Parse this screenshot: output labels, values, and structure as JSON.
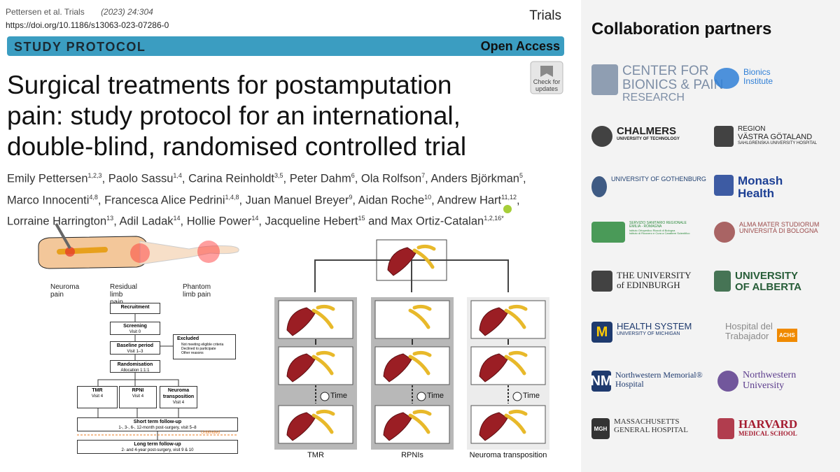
{
  "header": {
    "authors_short": "Pettersen et al. Trials",
    "citation": "(2023) 24:304",
    "doi": "https://doi.org/10.1186/s13063-023-07286-0",
    "journal": "Trials",
    "section": "STUDY PROTOCOL",
    "access": "Open Access",
    "check_updates": [
      "Check for",
      "updates"
    ]
  },
  "title_lines": [
    "Surgical treatments for postamputation",
    "pain: study protocol for an international,",
    "double-blind, randomised controlled trial"
  ],
  "author_lines": [
    [
      {
        "name": "Emily Pettersen",
        "aff": "1,2,3",
        "after": ", "
      },
      {
        "name": "Paolo Sassu",
        "aff": "1,4",
        "after": ", "
      },
      {
        "name": "Carina Reinholdt",
        "aff": "3,5",
        "after": ", "
      },
      {
        "name": "Peter Dahm",
        "aff": "6",
        "after": ", "
      },
      {
        "name": "Ola Rolfson",
        "aff": "7",
        "after": ", "
      },
      {
        "name": "Anders Björkman",
        "aff": "5",
        "after": ","
      }
    ],
    [
      {
        "name": "Marco Innocenti",
        "aff": "4,8",
        "after": ", "
      },
      {
        "name": "Francesca Alice Pedrini",
        "aff": "1,4,8",
        "after": ", "
      },
      {
        "name": "Juan Manuel Breyer",
        "aff": "9",
        "after": ", "
      },
      {
        "name": "Aidan Roche",
        "aff": "10",
        "after": ", "
      },
      {
        "name": "Andrew Hart",
        "aff": "11,12",
        "after": ","
      }
    ],
    [
      {
        "name": "Lorraine Harrington",
        "aff": "13",
        "after": ", "
      },
      {
        "name": "Adil Ladak",
        "aff": "14",
        "after": ", "
      },
      {
        "name": "Hollie Power",
        "aff": "14",
        "after": ", "
      },
      {
        "name": "Jacqueline Hebert",
        "aff": "15",
        "after": " and "
      },
      {
        "name": "Max Ortiz-Catalan",
        "aff": "1,2,16*"
      }
    ]
  ],
  "pain_figure": {
    "labels": [
      "Neuroma pain",
      "Residual limb pain",
      "Phantom limb pain"
    ]
  },
  "flowchart": {
    "recruitment": "Recruitment",
    "screening": {
      "title": "Screening",
      "sub": "Visit 0"
    },
    "baseline": {
      "title": "Baseline period",
      "sub": "Visit 1–3"
    },
    "excluded": {
      "title": "Excluded",
      "items": [
        "Not meeting eligible criteria",
        "Declined to participate",
        "Other reasons"
      ]
    },
    "randomisation": {
      "title": "Randomisation",
      "sub": "Allocation 1:1:1"
    },
    "arms": [
      {
        "title": "TMR",
        "sub": "Visit 4"
      },
      {
        "title": "RPNI",
        "sub": "Visit 4"
      },
      {
        "title": "Neuroma transposition",
        "sub": "Visit 4"
      }
    ],
    "short_term": {
      "title": "Short term follow-up",
      "sub": "1-, 3-, 6-, 12-month post-surgery, visit 5–8"
    },
    "unblinded": "Unblinded",
    "long_term": {
      "title": "Long term follow-up",
      "sub": "2- and 4-year post-surgery, visit 9 & 10"
    }
  },
  "procedure_figure": {
    "time_labels": [
      "Time",
      "Time",
      "Time"
    ],
    "columns": [
      "TMR",
      "RPNIs",
      "Neuroma transposition"
    ]
  },
  "partners": {
    "title": "Collaboration partners",
    "logos": [
      {
        "lines": [
          "CENTER FOR",
          "BIONICS & PAIN",
          "RESEARCH"
        ],
        "color": "#7d8ea6"
      },
      {
        "lines": [
          "Bionics",
          "Institute"
        ],
        "color": "#2f7fd6"
      },
      {
        "lines": [
          "CHALMERS",
          "UNIVERSITY OF TECHNOLOGY"
        ],
        "color": "#222222"
      },
      {
        "lines": [
          "REGION",
          "VÄSTRA GÖTALAND",
          "SAHLGRENSKA UNIVERSITY HOSPITAL"
        ],
        "color": "#222222"
      },
      {
        "lines": [
          "UNIVERSITY OF GOTHENBURG"
        ],
        "color": "#1f3f70"
      },
      {
        "lines": [
          "Monash",
          "Health"
        ],
        "color": "#1c3f94"
      },
      {
        "lines": [
          "SERVIZIO SANITARIO REGIONALE",
          "EMILIA - ROMAGNA",
          "Istituto Ortopedico Rizzoli di Bologna",
          "Istituto di Ricovero e Cura a Carattere Scientifico"
        ],
        "color": "#2c8a3c"
      },
      {
        "lines": [
          "ALMA MATER STUDIORUM",
          "UNIVERSITÀ DI BOLOGNA"
        ],
        "color": "#9b4a4a"
      },
      {
        "lines": [
          "THE UNIVERSITY",
          "of EDINBURGH"
        ],
        "color": "#222222"
      },
      {
        "lines": [
          "UNIVERSITY",
          "OF ALBERTA"
        ],
        "color": "#275d38"
      },
      {
        "lines": [
          "HEALTH SYSTEM",
          "UNIVERSITY OF MICHIGAN"
        ],
        "color": "#1e3a6e",
        "mark": "M"
      },
      {
        "lines": [
          "Hospital del",
          "Trabajador"
        ],
        "color": "#8a8a8a",
        "mark": "ACHS"
      },
      {
        "lines": [
          "Northwestern Memorial®",
          "Hospital"
        ],
        "color": "#1e3a6e",
        "mark": "NM"
      },
      {
        "lines": [
          "Northwestern",
          "University"
        ],
        "color": "#5b3b8c"
      },
      {
        "lines": [
          "MASSACHUSETTS",
          "GENERAL HOSPITAL"
        ],
        "color": "#333333",
        "mark": "MGH"
      },
      {
        "lines": [
          "HARVARD",
          "MEDICAL SCHOOL"
        ],
        "color": "#a51c30"
      }
    ]
  }
}
